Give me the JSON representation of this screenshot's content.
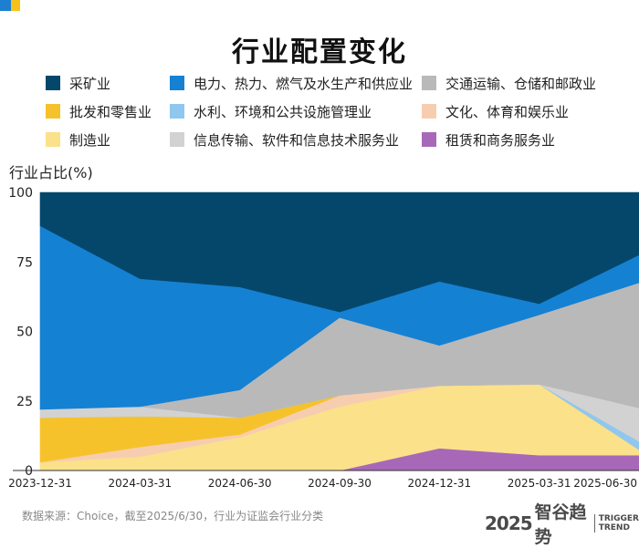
{
  "title": "行业配置变化",
  "ylabel": "行业占比(%)",
  "source": "数据来源：Choice，截至2025/6/30，行业为证监会行业分类",
  "brand": {
    "year": "2025",
    "name": "智谷趋势",
    "sub1": "TRIGGER",
    "sub2": "TREND"
  },
  "chart_data": {
    "type": "area",
    "stacked": true,
    "title": "行业配置变化",
    "ylabel": "行业占比(%)",
    "ylim": [
      0,
      100
    ],
    "yticks": [
      0,
      25,
      50,
      75,
      100
    ],
    "x": [
      "2023-12-31",
      "2024-03-31",
      "2024-06-30",
      "2024-09-30",
      "2024-12-31",
      "2025-03-31",
      "2025-06-30"
    ],
    "series": [
      {
        "name": "租赁和商务服务业",
        "color": "#a868b8",
        "values": [
          0,
          0,
          0,
          0,
          8,
          5.5,
          5.5
        ]
      },
      {
        "name": "制造业",
        "color": "#fbe18a",
        "values": [
          3,
          5,
          12,
          23,
          22.5,
          25.5,
          2
        ]
      },
      {
        "name": "文化、体育和娱乐业",
        "color": "#f7cdb0",
        "values": [
          0,
          3.5,
          1,
          4,
          0,
          0,
          0
        ]
      },
      {
        "name": "批发和零售业",
        "color": "#f6c22b",
        "values": [
          16,
          11,
          6,
          0,
          0,
          0,
          0
        ]
      },
      {
        "name": "水利、环境和公共设施管理业",
        "color": "#8fc7ef",
        "values": [
          0,
          0,
          0,
          0,
          0,
          0,
          3
        ]
      },
      {
        "name": "信息传输、软件和信息技术服务业",
        "color": "#d2d2d2",
        "values": [
          3,
          3.5,
          0,
          0,
          0,
          0,
          12
        ]
      },
      {
        "name": "交通运输、仓储和邮政业",
        "color": "#b9b9b9",
        "values": [
          0,
          0,
          10,
          28,
          14.5,
          25,
          45
        ]
      },
      {
        "name": "电力、热力、燃气及水生产和供应业",
        "color": "#1581d3",
        "values": [
          66,
          46,
          37,
          2,
          23,
          4,
          10
        ]
      },
      {
        "name": "采矿业",
        "color": "#05476b",
        "values": [
          12,
          31,
          34,
          43,
          32,
          40,
          22.5
        ]
      }
    ]
  },
  "legend": [
    {
      "label": "采矿业",
      "color": "#05476b"
    },
    {
      "label": "电力、热力、燃气及水生产和供应业",
      "color": "#1581d3"
    },
    {
      "label": "交通运输、仓储和邮政业",
      "color": "#b9b9b9"
    },
    {
      "label": "批发和零售业",
      "color": "#f6c22b"
    },
    {
      "label": "水利、环境和公共设施管理业",
      "color": "#8fc7ef"
    },
    {
      "label": "文化、体育和娱乐业",
      "color": "#f7cdb0"
    },
    {
      "label": "制造业",
      "color": "#fbe18a"
    },
    {
      "label": "信息传输、软件和信息技术服务业",
      "color": "#d2d2d2"
    },
    {
      "label": "租赁和商务服务业",
      "color": "#a868b8"
    }
  ]
}
